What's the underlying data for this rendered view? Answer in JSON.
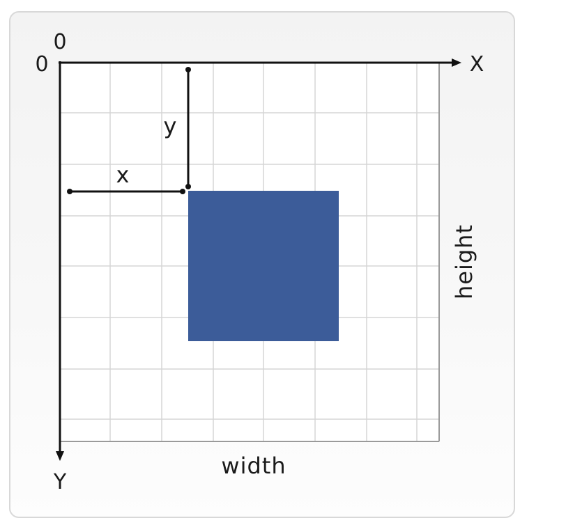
{
  "diagram": {
    "origin_label_x": "0",
    "origin_label_y": "0",
    "x_axis_label": "X",
    "y_axis_label": "Y",
    "x_offset_label": "x",
    "y_offset_label": "y",
    "width_label": "width",
    "height_label": "height"
  },
  "colors": {
    "rectangle_fill": "#3c5c99",
    "axis": "#111111",
    "grid": "#d6d6d6",
    "card_border": "#d8d8d8"
  }
}
